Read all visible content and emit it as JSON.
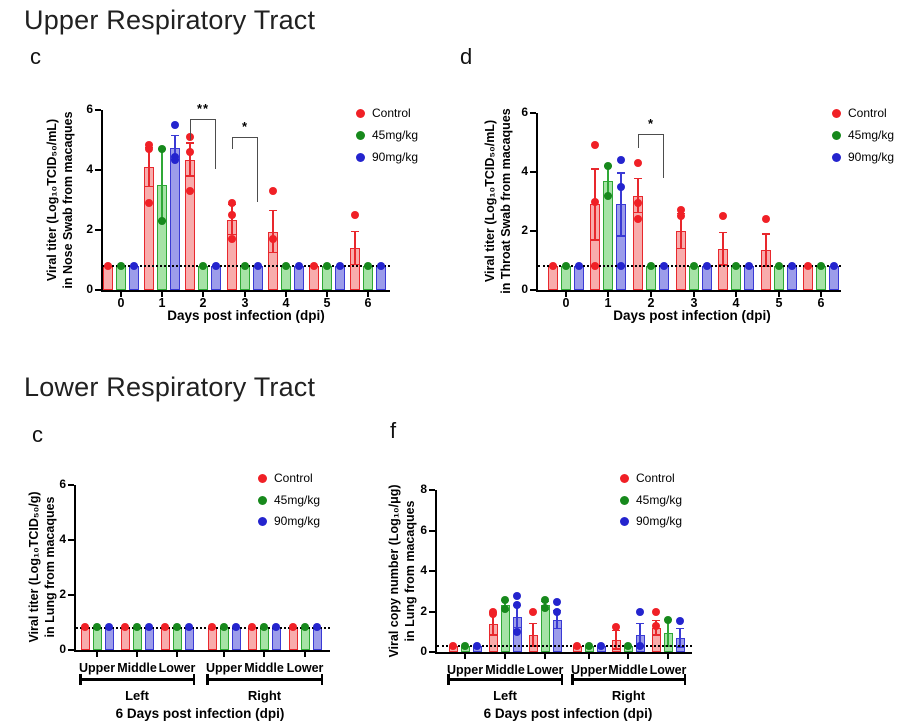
{
  "sections": [
    {
      "title": "Upper Respiratory Tract"
    },
    {
      "title": "Lower Respiratory Tract"
    }
  ],
  "chart_data": [
    {
      "type": "bar",
      "panel_label": "c",
      "section": "Upper Respiratory Tract",
      "ylabel_lines": [
        "Viral titer (Log₁₀TCID₅₀/mL)",
        "in Nose Swab from macaques"
      ],
      "xlabel": "Days post infection (dpi)",
      "categories": [
        "0",
        "1",
        "2",
        "3",
        "4",
        "5",
        "6"
      ],
      "ylim": [
        0,
        6
      ],
      "yticks": [
        0,
        2,
        4,
        6
      ],
      "baseline": 0.8,
      "grid": false,
      "legend_position": "right-top",
      "series": [
        {
          "name": "Control",
          "dot": "#F02026",
          "stroke": "#E8282D",
          "fill": "#F8ACAC",
          "values": [
            0.8,
            4.1,
            4.35,
            2.35,
            1.95,
            0.8,
            1.4
          ],
          "errors": [
            0,
            0.65,
            0.55,
            0.5,
            0.7,
            0,
            0.55
          ],
          "points": [
            [
              0.8
            ],
            [
              2.9,
              4.7,
              4.85
            ],
            [
              3.3,
              4.6,
              5.1
            ],
            [
              1.7,
              2.5,
              2.9
            ],
            [
              1.7,
              3.3
            ],
            [
              0.8
            ],
            [
              2.5
            ]
          ]
        },
        {
          "name": "45mg/kg",
          "dot": "#17891C",
          "stroke": "#2FA836",
          "fill": "#A6E3A6",
          "values": [
            0.8,
            3.5,
            0.8,
            0.8,
            0.8,
            0.8,
            0.8
          ],
          "errors": [
            0,
            1.2,
            0,
            0,
            0,
            0,
            0
          ],
          "points": [
            [
              0.8
            ],
            [
              2.3,
              4.7
            ],
            [
              0.8
            ],
            [
              0.8
            ],
            [
              0.8
            ],
            [
              0.8
            ],
            [
              0.8
            ]
          ]
        },
        {
          "name": "90mg/kg",
          "dot": "#2424CE",
          "stroke": "#3A3AD4",
          "fill": "#9C9CEA",
          "values": [
            0.8,
            4.75,
            0.8,
            0.8,
            0.8,
            0.8,
            0.8
          ],
          "errors": [
            0,
            0.4,
            0,
            0,
            0,
            0,
            0
          ],
          "points": [
            [
              0.8
            ],
            [
              4.35,
              4.45,
              5.5
            ],
            [
              0.8
            ],
            [
              0.8
            ],
            [
              0.8
            ],
            [
              0.8
            ],
            [
              0.8
            ]
          ]
        }
      ],
      "significance": [
        {
          "label": "**",
          "cat": 2,
          "from_series": 0,
          "to_series": 2,
          "top": 5.7,
          "leg_from": 5.0,
          "leg_to": 4.05
        },
        {
          "label": "*",
          "cat": 3,
          "from_series": 0,
          "to_series": 2,
          "top": 5.1,
          "leg_from": 4.7,
          "leg_to": 2.95
        }
      ],
      "group_brackets": []
    },
    {
      "type": "bar",
      "panel_label": "d",
      "section": "Upper Respiratory Tract",
      "ylabel_lines": [
        "Viral titer (Log₁₀TCID₅₀/mL)",
        "in Throat Swab from macaques"
      ],
      "xlabel": "Days post infection (dpi)",
      "categories": [
        "0",
        "1",
        "2",
        "3",
        "4",
        "5",
        "6"
      ],
      "ylim": [
        0,
        6
      ],
      "yticks": [
        0,
        2,
        4,
        6
      ],
      "baseline": 0.8,
      "grid": false,
      "legend_position": "right-top",
      "series": [
        {
          "name": "Control",
          "dot": "#F02026",
          "stroke": "#E8282D",
          "fill": "#F8ACAC",
          "values": [
            0.8,
            2.9,
            3.2,
            2.0,
            1.4,
            1.35,
            0.8
          ],
          "errors": [
            0,
            1.2,
            0.58,
            0.6,
            0.55,
            0.55,
            0
          ],
          "points": [
            [
              0.8
            ],
            [
              0.8,
              3.0,
              4.9
            ],
            [
              2.4,
              2.95,
              4.3
            ],
            [
              2.5,
              2.7
            ],
            [
              2.5
            ],
            [
              2.4
            ],
            [
              0.8
            ]
          ]
        },
        {
          "name": "45mg/kg",
          "dot": "#17891C",
          "stroke": "#2FA836",
          "fill": "#A6E3A6",
          "values": [
            0.8,
            3.7,
            0.8,
            0.8,
            0.8,
            0.8,
            0.8
          ],
          "errors": [
            0,
            0.5,
            0,
            0,
            0,
            0,
            0
          ],
          "points": [
            [
              0.8
            ],
            [
              3.2,
              4.2
            ],
            [
              0.8
            ],
            [
              0.8
            ],
            [
              0.8
            ],
            [
              0.8
            ],
            [
              0.8
            ]
          ]
        },
        {
          "name": "90mg/kg",
          "dot": "#2424CE",
          "stroke": "#3A3AD4",
          "fill": "#9C9CEA",
          "values": [
            0.8,
            2.9,
            0.8,
            0.8,
            0.8,
            0.8,
            0.8
          ],
          "errors": [
            0,
            1.07,
            0,
            0,
            0,
            0,
            0
          ],
          "points": [
            [
              0.8
            ],
            [
              0.8,
              3.5,
              4.4
            ],
            [
              0.8
            ],
            [
              0.8
            ],
            [
              0.8
            ],
            [
              0.8
            ],
            [
              0.8
            ]
          ]
        }
      ],
      "significance": [
        {
          "label": "*",
          "cat": 2,
          "from_series": 0,
          "to_series": 2,
          "top": 5.3,
          "leg_from": 4.8,
          "leg_to": 3.8
        }
      ],
      "group_brackets": []
    },
    {
      "type": "bar",
      "panel_label": "c",
      "section": "Lower Respiratory Tract",
      "ylabel_lines": [
        "Viral titer (Log₁₀TCID₅₀/g)",
        "in Lung from macaques"
      ],
      "xlabel": "6 Days post infection (dpi)",
      "categories": [
        "Upper",
        "Middle",
        "Lower",
        "Upper",
        "Middle",
        "Lower"
      ],
      "ylim": [
        0,
        6
      ],
      "yticks": [
        0,
        2,
        4,
        6
      ],
      "baseline": 0.8,
      "grid": false,
      "legend_position": "right-top",
      "series": [
        {
          "name": "Control",
          "dot": "#F02026",
          "stroke": "#E8282D",
          "fill": "#F8ACAC",
          "values": [
            0.82,
            0.82,
            0.82,
            0.82,
            0.82,
            0.82
          ],
          "errors": [
            0,
            0,
            0,
            0,
            0,
            0
          ],
          "points": [
            [
              0.82
            ],
            [
              0.82
            ],
            [
              0.82
            ],
            [
              0.82
            ],
            [
              0.82
            ],
            [
              0.82
            ]
          ]
        },
        {
          "name": "45mg/kg",
          "dot": "#17891C",
          "stroke": "#2FA836",
          "fill": "#A6E3A6",
          "values": [
            0.82,
            0.82,
            0.82,
            0.82,
            0.82,
            0.82
          ],
          "errors": [
            0,
            0,
            0,
            0,
            0,
            0
          ],
          "points": [
            [
              0.82
            ],
            [
              0.82
            ],
            [
              0.82
            ],
            [
              0.82
            ],
            [
              0.82
            ],
            [
              0.82
            ]
          ]
        },
        {
          "name": "90mg/kg",
          "dot": "#2424CE",
          "stroke": "#3A3AD4",
          "fill": "#9C9CEA",
          "values": [
            0.82,
            0.82,
            0.82,
            0.82,
            0.82,
            0.82
          ],
          "errors": [
            0,
            0,
            0,
            0,
            0,
            0
          ],
          "points": [
            [
              0.82
            ],
            [
              0.82
            ],
            [
              0.82
            ],
            [
              0.82
            ],
            [
              0.82
            ],
            [
              0.82
            ]
          ]
        }
      ],
      "significance": [],
      "group_brackets": [
        {
          "label": "Left",
          "from_cat": 0,
          "to_cat": 2
        },
        {
          "label": "Right",
          "from_cat": 3,
          "to_cat": 5
        }
      ]
    },
    {
      "type": "bar",
      "panel_label": "f",
      "section": "Lower Respiratory Tract",
      "ylabel_lines": [
        "Viral copy number (Log₁₀/μg)",
        "in Lung from macaques"
      ],
      "xlabel": "6 Days post infection (dpi)",
      "categories": [
        "Upper",
        "Middle",
        "Lower",
        "Upper",
        "Middle",
        "Lower"
      ],
      "ylim": [
        0,
        8
      ],
      "yticks": [
        0,
        2,
        4,
        6,
        8
      ],
      "baseline": 0.3,
      "grid": false,
      "legend_position": "right-top",
      "series": [
        {
          "name": "Control",
          "dot": "#F02026",
          "stroke": "#E8282D",
          "fill": "#F8ACAC",
          "values": [
            0.3,
            1.4,
            0.85,
            0.3,
            0.6,
            1.2
          ],
          "errors": [
            0,
            0.55,
            0.55,
            0,
            0.45,
            0.35
          ],
          "points": [
            [
              0.3
            ],
            [
              1.9,
              2.0
            ],
            [
              2.0
            ],
            [
              0.3
            ],
            [
              1.25
            ],
            [
              1.3,
              2.0
            ]
          ]
        },
        {
          "name": "45mg/kg",
          "dot": "#17891C",
          "stroke": "#2FA836",
          "fill": "#A6E3A6",
          "values": [
            0.3,
            2.3,
            2.3,
            0.3,
            0.3,
            0.95
          ],
          "errors": [
            0,
            0.25,
            0.2,
            0,
            0,
            0.65
          ],
          "points": [
            [
              0.3
            ],
            [
              2.1,
              2.55
            ],
            [
              2.15,
              2.55
            ],
            [
              0.3
            ],
            [
              0.3
            ],
            [
              1.6
            ]
          ]
        },
        {
          "name": "90mg/kg",
          "dot": "#2424CE",
          "stroke": "#3A3AD4",
          "fill": "#9C9CEA",
          "values": [
            0.3,
            1.75,
            1.6,
            0.3,
            0.85,
            0.7
          ],
          "errors": [
            0,
            0.55,
            0.45,
            0,
            0.55,
            0.45
          ],
          "points": [
            [
              0.3
            ],
            [
              1.0,
              2.3,
              2.75
            ],
            [
              2.0,
              2.45
            ],
            [
              0.3
            ],
            [
              0.3,
              2.0
            ],
            [
              1.55
            ]
          ]
        }
      ],
      "significance": [],
      "group_brackets": [
        {
          "label": "Left",
          "from_cat": 0,
          "to_cat": 2
        },
        {
          "label": "Right",
          "from_cat": 3,
          "to_cat": 5
        }
      ]
    }
  ]
}
